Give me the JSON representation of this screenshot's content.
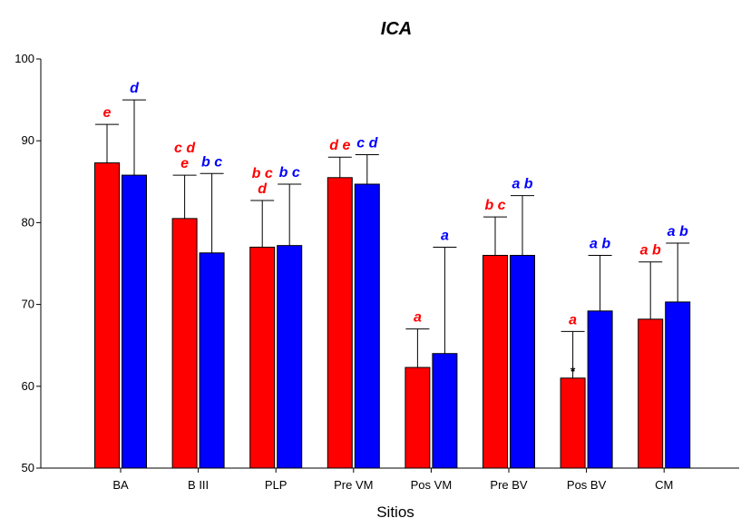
{
  "chart_data": {
    "type": "bar",
    "title": "ICA",
    "xlabel": "Sitios",
    "ylabel": "",
    "ylim": [
      50,
      100
    ],
    "yticks": [
      50,
      60,
      70,
      80,
      90,
      100
    ],
    "categories": [
      "BA",
      "B III",
      "PLP",
      "Pre VM",
      "Pos VM",
      "Pre BV",
      "Pos BV",
      "CM"
    ],
    "series": [
      {
        "color": "#ff0000",
        "values": [
          87.3,
          80.5,
          77.0,
          85.5,
          62.3,
          76.0,
          61.0,
          68.2
        ],
        "error_upper": [
          92.0,
          85.8,
          82.7,
          88.0,
          67.0,
          80.7,
          66.7,
          75.2
        ],
        "letters": [
          "e",
          "c d\ne",
          "b c\nd",
          "d e",
          "a",
          "b c",
          "a",
          "a b"
        ]
      },
      {
        "color": "#0000ff",
        "values": [
          85.8,
          76.3,
          77.2,
          84.7,
          64.0,
          76.0,
          69.2,
          70.3
        ],
        "error_upper": [
          95.0,
          86.0,
          84.7,
          88.3,
          77.0,
          83.3,
          76.0,
          77.5
        ],
        "letters": [
          "d",
          "b c",
          "b c",
          "c d",
          "a",
          "a b",
          "a b",
          "a b"
        ]
      }
    ],
    "annotations": [
      {
        "category": "Pos BV",
        "series": 0,
        "text": "*"
      }
    ]
  }
}
